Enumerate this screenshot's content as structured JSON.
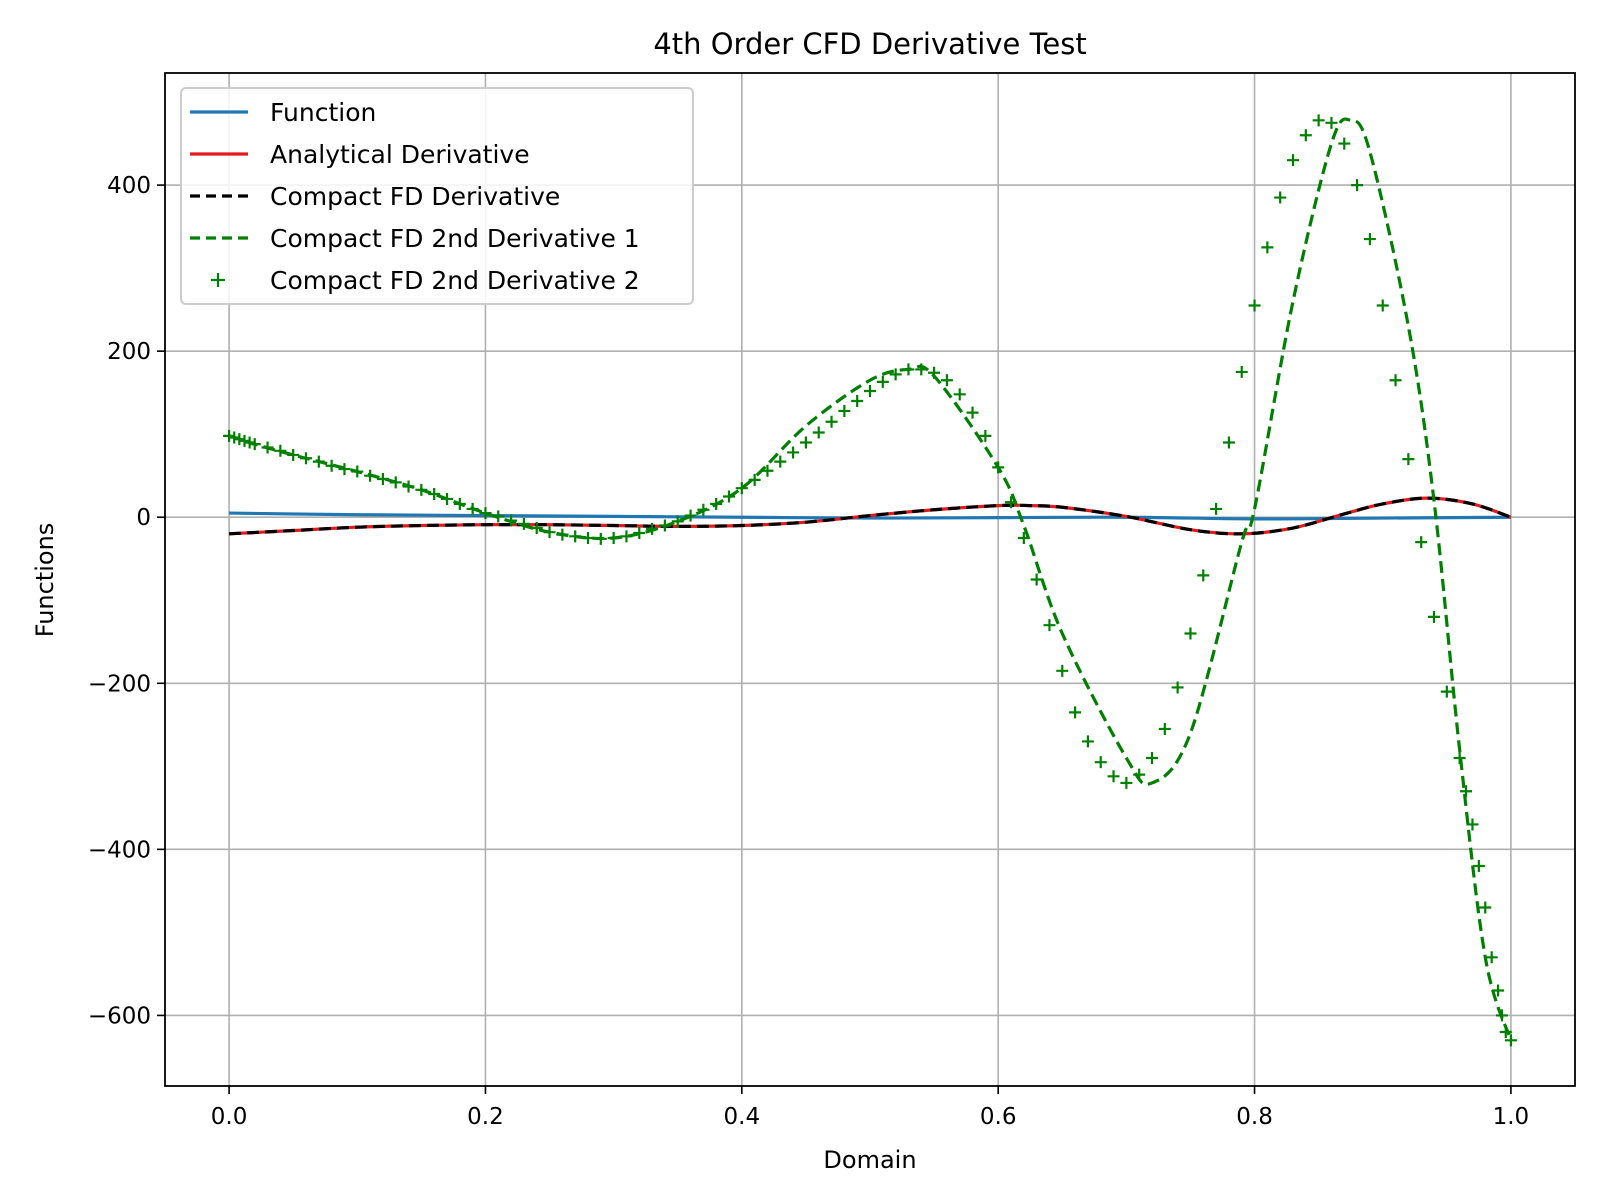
{
  "chart_data": {
    "type": "line",
    "title": "4th Order CFD Derivative Test",
    "xlabel": "Domain",
    "ylabel": "Functions",
    "xlim": [
      -0.05,
      1.05
    ],
    "ylim": [
      -685,
      535
    ],
    "xticks": [
      0.0,
      0.2,
      0.4,
      0.6,
      0.8,
      1.0
    ],
    "xtick_labels": [
      "0.0",
      "0.2",
      "0.4",
      "0.6",
      "0.8",
      "1.0"
    ],
    "yticks": [
      400,
      200,
      0,
      -200,
      -400,
      -600
    ],
    "ytick_labels": [
      "400",
      "200",
      "0",
      "−200",
      "−400",
      "−600"
    ],
    "grid": true,
    "legend_position": "upper-left",
    "legend_entries": [
      {
        "label": "Function",
        "color": "#1f77b4",
        "style": "solid"
      },
      {
        "label": "Analytical Derivative",
        "color": "#e41a1c",
        "style": "solid"
      },
      {
        "label": "Compact FD Derivative",
        "color": "#000000",
        "style": "dashed"
      },
      {
        "label": "Compact FD 2nd Derivative 1",
        "color": "#008000",
        "style": "dashed"
      },
      {
        "label": "Compact FD 2nd Derivative 2",
        "color": "#008000",
        "style": "plus-markers"
      }
    ],
    "series": [
      {
        "name": "Function",
        "color": "#1f77b4",
        "style": "solid",
        "x": [
          0.0,
          0.1,
          0.2,
          0.3,
          0.4,
          0.5,
          0.6,
          0.7,
          0.8,
          0.9,
          1.0
        ],
        "y": [
          5,
          3,
          2,
          1,
          0,
          -1,
          -0.5,
          0,
          -2,
          -1,
          0
        ]
      },
      {
        "name": "Analytical Derivative",
        "color": "#e41a1c",
        "style": "solid",
        "x": [
          0.0,
          0.05,
          0.1,
          0.15,
          0.2,
          0.25,
          0.3,
          0.35,
          0.4,
          0.45,
          0.5,
          0.55,
          0.6,
          0.625,
          0.65,
          0.7,
          0.75,
          0.79,
          0.83,
          0.87,
          0.9,
          0.935,
          0.97,
          1.0
        ],
        "y": [
          -20,
          -16,
          -12,
          -10,
          -9,
          -9,
          -10,
          -11,
          -10,
          -6,
          2,
          9,
          14,
          14,
          12,
          1,
          -15,
          -20,
          -13,
          4,
          16,
          23,
          16,
          0
        ]
      },
      {
        "name": "Compact FD Derivative",
        "color": "#000000",
        "style": "dashed",
        "x": [
          0.0,
          0.05,
          0.1,
          0.15,
          0.2,
          0.25,
          0.3,
          0.35,
          0.4,
          0.45,
          0.5,
          0.55,
          0.6,
          0.625,
          0.65,
          0.7,
          0.75,
          0.79,
          0.83,
          0.87,
          0.9,
          0.935,
          0.97,
          1.0
        ],
        "y": [
          -20,
          -16,
          -12,
          -10,
          -9,
          -9,
          -10,
          -11,
          -10,
          -6,
          2,
          9,
          14,
          14,
          12,
          1,
          -15,
          -20,
          -13,
          4,
          16,
          23,
          16,
          0
        ]
      },
      {
        "name": "Compact FD 2nd Derivative 1",
        "color": "#008000",
        "style": "dashed",
        "x": [
          0.0,
          0.02,
          0.05,
          0.1,
          0.15,
          0.2,
          0.25,
          0.3,
          0.35,
          0.4,
          0.45,
          0.5,
          0.53,
          0.55,
          0.6,
          0.62,
          0.65,
          0.7,
          0.72,
          0.75,
          0.79,
          0.8,
          0.83,
          0.86,
          0.875,
          0.89,
          0.92,
          0.94,
          0.96,
          0.98,
          1.0
        ],
        "y": [
          98,
          88,
          75,
          55,
          33,
          5,
          -18,
          -25,
          -5,
          35,
          110,
          165,
          178,
          170,
          60,
          -10,
          -140,
          -290,
          -320,
          -260,
          -30,
          10,
          260,
          450,
          478,
          440,
          230,
          20,
          -280,
          -530,
          -630
        ]
      },
      {
        "name": "Compact FD 2nd Derivative 2",
        "color": "#008000",
        "style": "plus-markers",
        "x": [
          0.0,
          0.004,
          0.008,
          0.012,
          0.016,
          0.02,
          0.03,
          0.04,
          0.05,
          0.06,
          0.07,
          0.08,
          0.09,
          0.1,
          0.11,
          0.12,
          0.13,
          0.14,
          0.15,
          0.16,
          0.17,
          0.18,
          0.19,
          0.2,
          0.21,
          0.22,
          0.23,
          0.24,
          0.25,
          0.26,
          0.27,
          0.28,
          0.29,
          0.3,
          0.31,
          0.32,
          0.33,
          0.34,
          0.35,
          0.36,
          0.37,
          0.38,
          0.39,
          0.4,
          0.41,
          0.42,
          0.43,
          0.44,
          0.45,
          0.46,
          0.47,
          0.48,
          0.49,
          0.5,
          0.51,
          0.52,
          0.53,
          0.54,
          0.55,
          0.56,
          0.57,
          0.58,
          0.59,
          0.6,
          0.61,
          0.62,
          0.63,
          0.64,
          0.65,
          0.66,
          0.67,
          0.68,
          0.69,
          0.7,
          0.71,
          0.72,
          0.73,
          0.74,
          0.75,
          0.76,
          0.77,
          0.78,
          0.79,
          0.8,
          0.81,
          0.82,
          0.83,
          0.84,
          0.85,
          0.86,
          0.87,
          0.88,
          0.89,
          0.9,
          0.91,
          0.92,
          0.93,
          0.94,
          0.95,
          0.96,
          0.965,
          0.97,
          0.975,
          0.98,
          0.985,
          0.99,
          0.993,
          0.996,
          1.0
        ],
        "y": [
          98,
          96,
          94,
          92,
          90,
          88,
          84,
          80,
          75,
          71,
          67,
          62,
          58,
          55,
          50,
          46,
          42,
          37,
          33,
          28,
          22,
          16,
          10,
          5,
          1,
          -4,
          -8,
          -13,
          -18,
          -21,
          -23,
          -25,
          -26,
          -25,
          -23,
          -19,
          -14,
          -10,
          -5,
          2,
          9,
          16,
          25,
          35,
          45,
          56,
          67,
          78,
          90,
          102,
          115,
          128,
          140,
          152,
          163,
          172,
          178,
          178,
          174,
          165,
          148,
          126,
          98,
          60,
          18,
          -25,
          -75,
          -130,
          -185,
          -235,
          -270,
          -295,
          -312,
          -320,
          -310,
          -290,
          -255,
          -205,
          -140,
          -70,
          10,
          90,
          175,
          255,
          325,
          385,
          430,
          460,
          478,
          475,
          450,
          400,
          335,
          255,
          165,
          70,
          -30,
          -120,
          -210,
          -290,
          -330,
          -370,
          -420,
          -470,
          -530,
          -570,
          -600,
          -620,
          -630
        ]
      }
    ]
  }
}
